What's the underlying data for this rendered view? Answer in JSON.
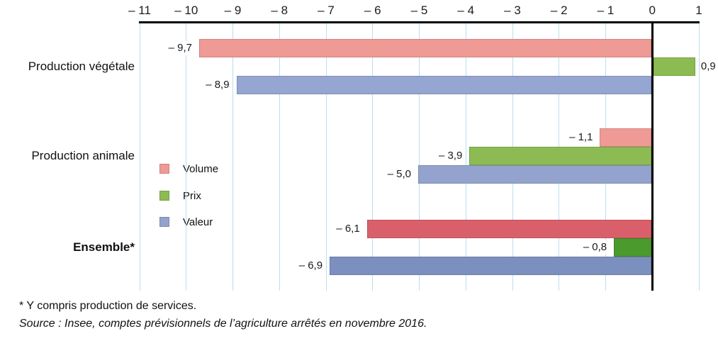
{
  "chart_data": {
    "type": "bar",
    "orientation": "horizontal",
    "title": "",
    "xlabel": "",
    "ylabel": "",
    "xlim": [
      -11,
      1
    ],
    "grid": "vertical-light-blue",
    "legend_position": "inside-left-middle",
    "x_ticks": [
      -11,
      -10,
      -9,
      -8,
      -7,
      -6,
      -5,
      -4,
      -3,
      -2,
      -1,
      0,
      1
    ],
    "x_tick_labels": [
      "– 11",
      "– 10",
      "– 9",
      "– 8",
      "– 7",
      "– 6",
      "– 5",
      "– 4",
      "– 3",
      "– 2",
      "– 1",
      "0",
      "1"
    ],
    "categories": [
      "Production végétale",
      "Production animale",
      "Ensemble*"
    ],
    "categories_bold": [
      false,
      false,
      true
    ],
    "series": [
      {
        "name": "Volume",
        "values": [
          -9.7,
          -1.1,
          -6.1
        ],
        "labels": [
          "– 9,7",
          "– 1,1",
          "– 6,1"
        ],
        "colors": [
          "#f09a96",
          "#f09a96",
          "#d9606a"
        ]
      },
      {
        "name": "Prix",
        "values": [
          0.9,
          -3.9,
          -0.8
        ],
        "labels": [
          "0,9",
          "– 3,9",
          "– 0,8"
        ],
        "colors": [
          "#8cbb53",
          "#8cbb53",
          "#4a9a2e"
        ]
      },
      {
        "name": "Valeur",
        "values": [
          -8.9,
          -5.0,
          -6.9
        ],
        "labels": [
          "– 8,9",
          "– 5,0",
          "– 6,9"
        ],
        "colors": [
          "#96a6d2",
          "#93a3cd",
          "#7c90c0"
        ]
      }
    ]
  },
  "colors": {
    "gridline": "#b9dff2",
    "axis": "#000000",
    "background": "#ffffff"
  },
  "legend": {
    "items": [
      {
        "label": "Volume",
        "color": "#f09a96"
      },
      {
        "label": "Prix",
        "color": "#8cbb53"
      },
      {
        "label": "Valeur",
        "color": "#93a3cd"
      }
    ]
  },
  "footnotes": {
    "note": "* Y compris production de services.",
    "source": "Source : Insee, comptes prévisionnels de l’agriculture arrêtés en novembre 2016."
  }
}
